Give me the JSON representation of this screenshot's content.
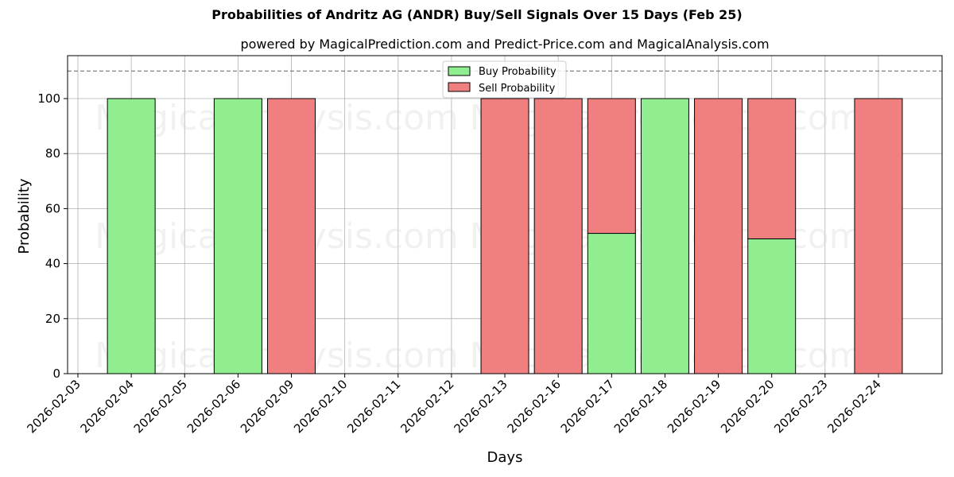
{
  "chart_data": {
    "type": "bar",
    "stacked": true,
    "title": "Probabilities of Andritz AG (ANDR) Buy/Sell Signals Over 15 Days (Feb 25)",
    "subtitle": "powered by MagicalPrediction.com and Predict-Price.com and MagicalAnalysis.com",
    "xlabel": "Days",
    "ylabel": "Probability",
    "ylim": [
      0,
      115
    ],
    "yticks": [
      0,
      20,
      40,
      60,
      80,
      100
    ],
    "reference_line": {
      "y": 110,
      "style": "dashed",
      "color": "#808080"
    },
    "grid": true,
    "legend_position": "upper center",
    "categories": [
      "2026-02-03",
      "2026-02-04",
      "2026-02-05",
      "2026-02-06",
      "2026-02-09",
      "2026-02-10",
      "2026-02-11",
      "2026-02-12",
      "2026-02-13",
      "2026-02-16",
      "2026-02-17",
      "2026-02-18",
      "2026-02-19",
      "2026-02-20",
      "2026-02-23",
      "2026-02-24"
    ],
    "series": [
      {
        "name": "Buy Probability",
        "color": "#90ee90",
        "values": [
          0,
          100,
          0,
          100,
          0,
          0,
          0,
          0,
          0,
          0,
          51,
          100,
          0,
          49,
          0,
          0
        ]
      },
      {
        "name": "Sell Probability",
        "color": "#f08080",
        "values": [
          0,
          0,
          0,
          0,
          100,
          0,
          0,
          0,
          100,
          100,
          49,
          0,
          100,
          51,
          0,
          100
        ]
      }
    ],
    "watermarks": [
      "MagicalAnalysis.com",
      "MagicalPrediction.com"
    ]
  },
  "legend": {
    "buy_label": "Buy Probability",
    "sell_label": "Sell Probability"
  }
}
